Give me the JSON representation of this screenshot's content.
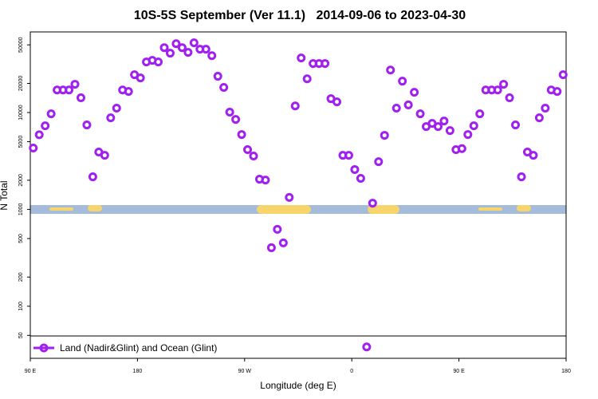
{
  "chart_data": {
    "type": "scatter",
    "title": "10S-5S September (Ver 11.1)   2014-09-06 to 2023-04-30",
    "xlabel": "Longitude (deg E)",
    "ylabel": "N Total",
    "x": [
      92.5,
      97.5,
      102.5,
      107.5,
      112.5,
      117.5,
      122.5,
      127.5,
      132.5,
      137.5,
      142.5,
      147.5,
      152.5,
      157.5,
      162.5,
      167.5,
      172.5,
      177.5,
      182.5,
      187.5,
      192.5,
      197.5,
      202.5,
      207.5,
      212.5,
      217.5,
      222.5,
      227.5,
      232.5,
      237.5,
      242.5,
      247.5,
      252.5,
      257.5,
      262.5,
      267.5,
      272.5,
      277.5,
      282.5,
      287.5,
      292.5,
      297.5,
      302.5,
      307.5,
      312.5,
      317.5,
      322.5,
      327.5,
      332.5,
      337.5,
      342.5,
      347.5,
      352.5,
      357.5,
      362.5,
      367.5,
      372.5,
      377.5,
      382.5,
      387.5,
      392.5,
      397.5,
      402.5,
      407.5,
      412.5,
      417.5,
      422.5,
      427.5,
      432.5,
      437.5,
      442.5,
      447.5,
      452.5,
      457.5,
      462.5,
      467.5,
      472.5,
      477.5,
      482.5,
      487.5,
      492.5,
      497.5,
      502.5,
      507.5,
      512.5,
      517.5,
      522.5,
      527.5,
      532.5,
      537.5
    ],
    "series": [
      {
        "name": "Land (Nadir&Glint) and Ocean (Glint)",
        "color": "#a020f0",
        "values": [
          4300,
          5900,
          7300,
          9700,
          17100,
          17100,
          17100,
          19600,
          14200,
          7450,
          2170,
          3910,
          3620,
          8830,
          11100,
          17100,
          16500,
          24600,
          22800,
          33300,
          34600,
          33300,
          46800,
          41000,
          51400,
          46800,
          41800,
          52500,
          45100,
          45100,
          38700,
          23700,
          18200,
          10100,
          8500,
          5930,
          4140,
          3560,
          2050,
          2010,
          402,
          622,
          451,
          1330,
          11700,
          36600,
          22300,
          32100,
          32100,
          32100,
          13900,
          12900,
          3620,
          3620,
          2580,
          2090,
          38,
          1160,
          3110,
          5820,
          27500,
          11100,
          21100,
          12000,
          16200,
          9700,
          7160,
          7730,
          7160,
          8180,
          6520,
          4140,
          4240,
          5930,
          7300,
          9700,
          17100,
          17100,
          17100,
          19600,
          14200,
          7450,
          2170,
          3910,
          3620,
          8830,
          11100,
          17100,
          16500,
          24600
        ]
      }
    ],
    "xlim": [
      90,
      540
    ],
    "xticks": [
      {
        "value": 90,
        "label": "90 E"
      },
      180,
      {
        "value": 270,
        "label": "90 W"
      },
      {
        "value": 360,
        "label": "0"
      },
      {
        "value": 450,
        "label": "90 E"
      },
      {
        "value": 540,
        "label": "180"
      }
    ],
    "ylim": [
      29,
      68000
    ],
    "log_y": true,
    "yticks": [
      50,
      100,
      200,
      500,
      1000,
      2000,
      5000,
      10000,
      20000,
      50000
    ],
    "legend": "lower left"
  }
}
